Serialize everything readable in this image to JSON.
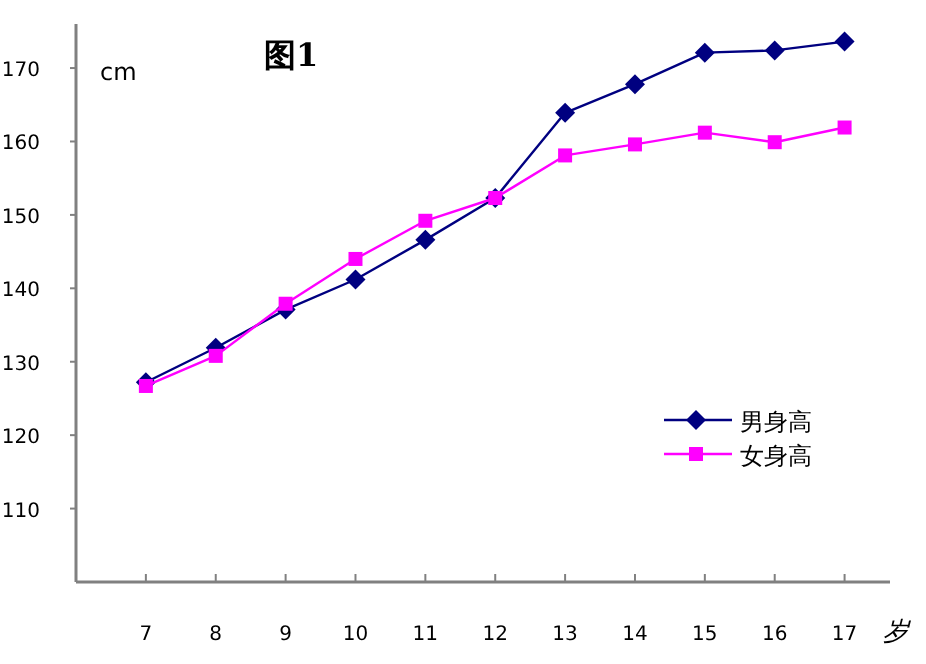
{
  "chart_data": {
    "type": "line",
    "title": "图1",
    "xlabel": "岁",
    "ylabel": "cm",
    "categories": [
      "7",
      "8",
      "9",
      "10",
      "11",
      "12",
      "13",
      "14",
      "15",
      "16",
      "17"
    ],
    "series": [
      {
        "name": "男身高",
        "color": "#000080",
        "marker": "diamond",
        "values": [
          127.2,
          131.9,
          137.1,
          141.2,
          146.6,
          152.3,
          163.9,
          167.8,
          172.1,
          172.4,
          173.6
        ]
      },
      {
        "name": "女身高",
        "color": "#ff00ff",
        "marker": "square",
        "values": [
          126.7,
          130.8,
          137.9,
          144,
          149.2,
          152.3,
          158.1,
          159.6,
          161.2,
          159.9,
          161.9
        ]
      }
    ],
    "ylim": [
      100,
      176
    ],
    "yticks": [
      110,
      120,
      130,
      140,
      150,
      160,
      170
    ],
    "grid": false,
    "legend": "right"
  }
}
